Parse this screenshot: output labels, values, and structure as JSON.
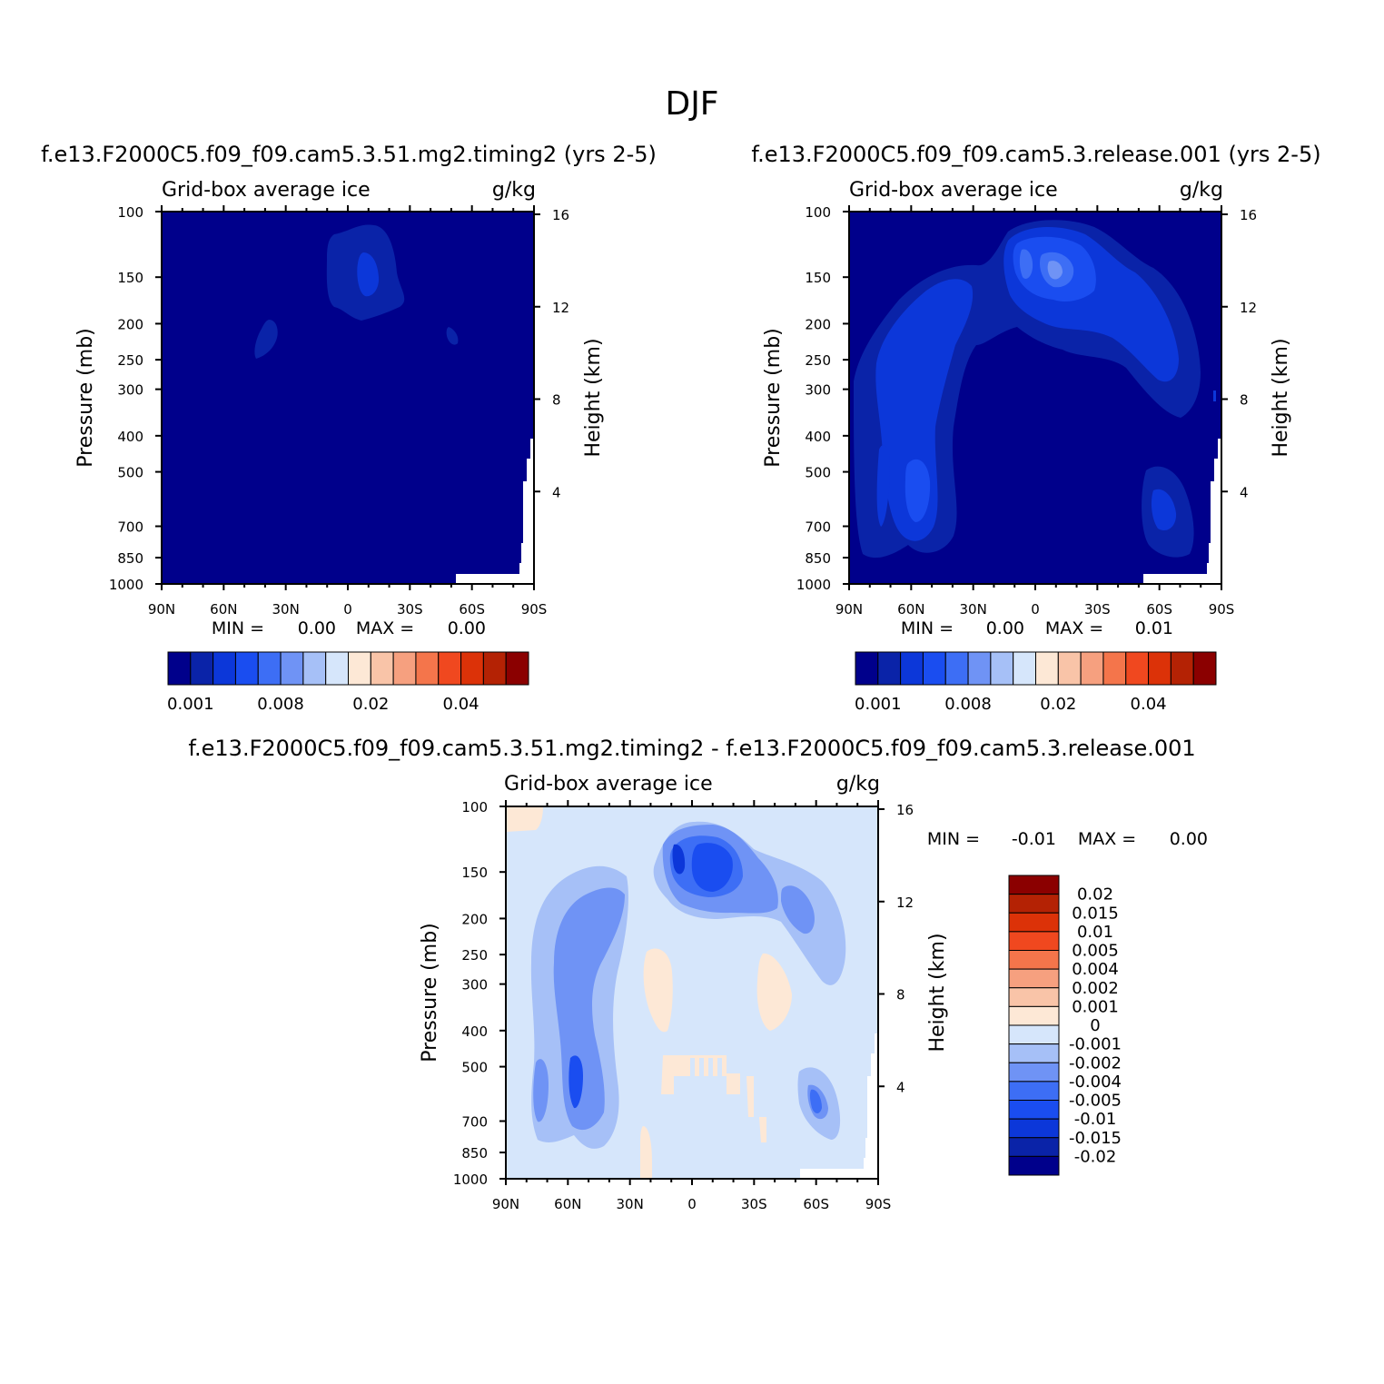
{
  "figure": {
    "title": "DJF"
  },
  "palette": {
    "seq_colors": [
      "#00008b",
      "#0a23a8",
      "#0c37d9",
      "#1a4df0",
      "#3d6ef5",
      "#6f93f5",
      "#a6c0f7",
      "#d6e6fb",
      "#fde8d6",
      "#f9c4a8",
      "#f6a07f",
      "#f4754b",
      "#f0481f",
      "#dc3208",
      "#b42204",
      "#8b0000"
    ],
    "div_colors": [
      "#00008b",
      "#0a23a8",
      "#0c37d9",
      "#1a4df0",
      "#3d6ef5",
      "#6f93f5",
      "#a6c0f7",
      "#d6e6fb",
      "#fde8d6",
      "#f9c4a8",
      "#f6a07f",
      "#f4754b",
      "#f0481f",
      "#dc3208",
      "#b42204",
      "#8b0000"
    ]
  },
  "chart_data": [
    {
      "type": "contour",
      "panel": "top-left",
      "title": "f.e13.F2000C5.f09_f09.cam5.3.51.mg2.timing2 (yrs 2-5)",
      "variable_label": "Grid-box average ice",
      "units": "g/kg",
      "ylabel": "Pressure (mb)",
      "ylabel_right": "Height (km)",
      "x_ticks": [
        "90N",
        "60N",
        "30N",
        "0",
        "30S",
        "60S",
        "90S"
      ],
      "y_ticks": [
        "100",
        "150",
        "200",
        "250",
        "300",
        "400",
        "500",
        "700",
        "850",
        "1000"
      ],
      "y_right_ticks": [
        "16",
        "12",
        "8",
        "4"
      ],
      "ylim": [
        1000,
        100
      ],
      "min_label": "MIN =",
      "min_value": "0.00",
      "max_label": "MAX =",
      "max_value": "0.00",
      "colorbar_labels": [
        "0.001",
        "0.008",
        "0.02",
        "0.04"
      ],
      "features": [
        {
          "lat": -7,
          "p": 240,
          "level": 2
        },
        {
          "lat": 0,
          "p": 220,
          "level": 1
        },
        {
          "lat": 40,
          "p": 410,
          "level": 1
        },
        {
          "lat": -50,
          "p": 400,
          "level": 1
        }
      ]
    },
    {
      "type": "contour",
      "panel": "top-right",
      "title": "f.e13.F2000C5.f09_f09.cam5.3.release.001 (yrs 2-5)",
      "variable_label": "Grid-box average ice",
      "units": "g/kg",
      "ylabel": "Pressure (mb)",
      "ylabel_right": "Height (km)",
      "x_ticks": [
        "90N",
        "60N",
        "30N",
        "0",
        "30S",
        "60S",
        "90S"
      ],
      "y_ticks": [
        "100",
        "150",
        "200",
        "250",
        "300",
        "400",
        "500",
        "700",
        "850",
        "1000"
      ],
      "y_right_ticks": [
        "16",
        "12",
        "8",
        "4"
      ],
      "ylim": [
        1000,
        100
      ],
      "min_label": "MIN =",
      "min_value": "0.00",
      "max_label": "MAX =",
      "max_value": "0.01",
      "colorbar_labels": [
        "0.001",
        "0.008",
        "0.02",
        "0.04"
      ],
      "features": [
        {
          "lat": 0,
          "p": 230,
          "level": 2
        },
        {
          "lat": -10,
          "p": 240,
          "level": 4
        },
        {
          "lat": 8,
          "p": 230,
          "level": 3
        },
        {
          "lat": 55,
          "p": 600,
          "level": 2
        },
        {
          "lat": 60,
          "p": 750,
          "level": 3
        },
        {
          "lat": -55,
          "p": 400,
          "level": 2
        },
        {
          "lat": -60,
          "p": 800,
          "level": 3
        }
      ]
    },
    {
      "type": "contour",
      "panel": "bottom",
      "title": "f.e13.F2000C5.f09_f09.cam5.3.51.mg2.timing2 - f.e13.F2000C5.f09_f09.cam5.3.release.001",
      "variable_label": "Grid-box average ice",
      "units": "g/kg",
      "ylabel": "Pressure (mb)",
      "ylabel_right": "Height (km)",
      "x_ticks": [
        "90N",
        "60N",
        "30N",
        "0",
        "30S",
        "60S",
        "90S"
      ],
      "y_ticks": [
        "100",
        "150",
        "200",
        "250",
        "300",
        "400",
        "500",
        "700",
        "850",
        "1000"
      ],
      "y_right_ticks": [
        "16",
        "12",
        "8",
        "4"
      ],
      "ylim": [
        1000,
        100
      ],
      "min_label": "MIN =",
      "min_value": "-0.01",
      "max_label": "MAX =",
      "max_value": "0.00",
      "colorbar_labels": [
        "0.02",
        "0.015",
        "0.01",
        "0.005",
        "0.004",
        "0.002",
        "0.001",
        "0",
        "-0.001",
        "-0.002",
        "-0.004",
        "-0.005",
        "-0.01",
        "-0.015",
        "-0.02"
      ],
      "features": [
        {
          "lat": 0,
          "p": 230,
          "level": -3
        },
        {
          "lat": -5,
          "p": 230,
          "level": -5
        },
        {
          "lat": 55,
          "p": 550,
          "level": -2
        },
        {
          "lat": 58,
          "p": 780,
          "level": -4
        },
        {
          "lat": -55,
          "p": 400,
          "level": -2
        },
        {
          "lat": -62,
          "p": 800,
          "level": -3
        },
        {
          "lat": 15,
          "p": 560,
          "level": 1
        },
        {
          "lat": -38,
          "p": 550,
          "level": 1
        }
      ]
    }
  ]
}
